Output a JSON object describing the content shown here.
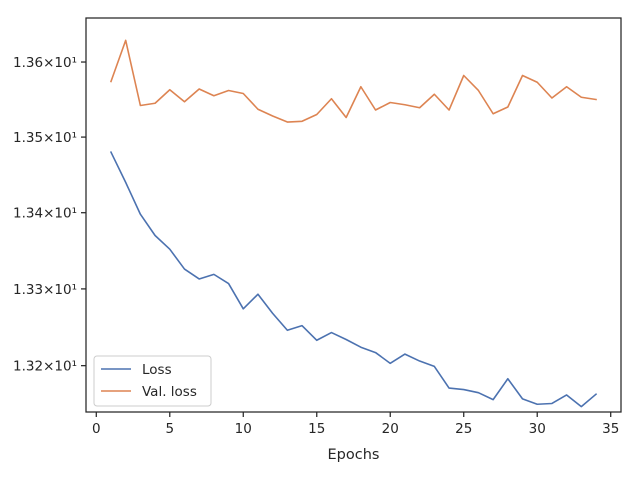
{
  "chart_data": {
    "type": "line",
    "title": "",
    "xlabel": "Epochs",
    "ylabel": "",
    "y_scale": "log",
    "xlim": [
      -0.7,
      35.7
    ],
    "ylim": [
      13.14,
      13.659
    ],
    "grid": false,
    "legend_position": "lower-left",
    "x_ticks": [
      0,
      5,
      10,
      15,
      20,
      25,
      30,
      35
    ],
    "x_tick_labels": [
      "0",
      "5",
      "10",
      "15",
      "20",
      "25",
      "30",
      "35"
    ],
    "y_ticks": [
      13.2,
      13.3,
      13.4,
      13.5,
      13.6
    ],
    "y_tick_labels": [
      "1.32×10¹",
      "1.33×10¹",
      "1.34×10¹",
      "1.35×10¹",
      "1.36×10¹"
    ],
    "x": [
      1,
      2,
      3,
      4,
      5,
      6,
      7,
      8,
      9,
      10,
      11,
      12,
      13,
      14,
      15,
      16,
      17,
      18,
      19,
      20,
      21,
      22,
      23,
      24,
      25,
      26,
      27,
      28,
      29,
      30,
      31,
      32,
      33,
      34
    ],
    "series": [
      {
        "name": "Loss",
        "color": "#4c72b0",
        "values": [
          13.48,
          13.44,
          13.398,
          13.37,
          13.352,
          13.326,
          13.313,
          13.319,
          13.307,
          13.274,
          13.293,
          13.268,
          13.246,
          13.252,
          13.233,
          13.243,
          13.234,
          13.224,
          13.217,
          13.203,
          13.215,
          13.206,
          13.199,
          13.171,
          13.169,
          13.165,
          13.156,
          13.183,
          13.157,
          13.15,
          13.151,
          13.162,
          13.147,
          13.163
        ]
      },
      {
        "name": "Val. loss",
        "color": "#dd8452",
        "values": [
          13.574,
          13.629,
          13.542,
          13.545,
          13.563,
          13.547,
          13.564,
          13.555,
          13.562,
          13.558,
          13.537,
          13.528,
          13.52,
          13.521,
          13.53,
          13.551,
          13.526,
          13.567,
          13.536,
          13.546,
          13.543,
          13.539,
          13.557,
          13.536,
          13.582,
          13.562,
          13.531,
          13.54,
          13.582,
          13.573,
          13.552,
          13.567,
          13.553,
          13.55
        ]
      }
    ]
  }
}
